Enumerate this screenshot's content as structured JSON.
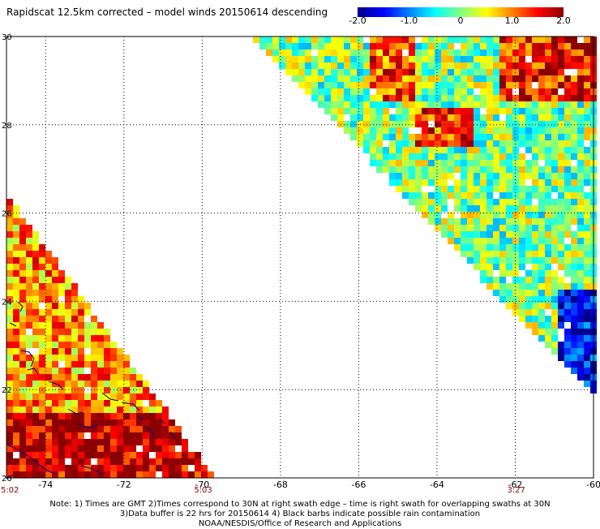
{
  "title": "Rapidscat 12.5km corrected – model winds 20150614 descending",
  "colorbar": {
    "range": [
      -2.0,
      2.0
    ],
    "tick_labels": [
      "-2.0",
      "-1.0",
      "0",
      "1.0",
      "2.0"
    ],
    "tick_values": [
      -2.0,
      -1.0,
      0,
      1.0,
      2.0
    ],
    "colors": [
      "#00008b",
      "#0000ff",
      "#0080ff",
      "#00ffff",
      "#80ff80",
      "#ffff00",
      "#ff8000",
      "#ff0000",
      "#8b0000"
    ]
  },
  "map": {
    "lon_range": [
      -75,
      -60
    ],
    "lat_range": [
      20,
      30
    ],
    "x_tick_labels": [
      "-74",
      "-72",
      "-70",
      "-68",
      "-66",
      "-64",
      "-62",
      "-60"
    ],
    "x_tick_values": [
      -74,
      -72,
      -70,
      -68,
      -66,
      -64,
      -62,
      -60
    ],
    "y_tick_labels": [
      "20",
      "22",
      "24",
      "26",
      "28",
      "30"
    ],
    "y_tick_values": [
      20,
      22,
      24,
      26,
      28,
      30
    ],
    "grid": "dotted"
  },
  "swath_times": [
    {
      "label": "5:02",
      "lon": -75
    },
    {
      "label": "5:03",
      "lon": -70
    },
    {
      "label": "3:27",
      "lon": -62
    }
  ],
  "notes": [
    "Note: 1) Times are GMT 2)Times correspond to 30N at right swath edge – time is right swath for overlapping swaths at 30N",
    "3)Data buffer is 22 hrs for 20150614 4) Black barbs indicate possible rain contamination",
    "NOAA/NESDIS/Office of Research and Applications"
  ]
}
